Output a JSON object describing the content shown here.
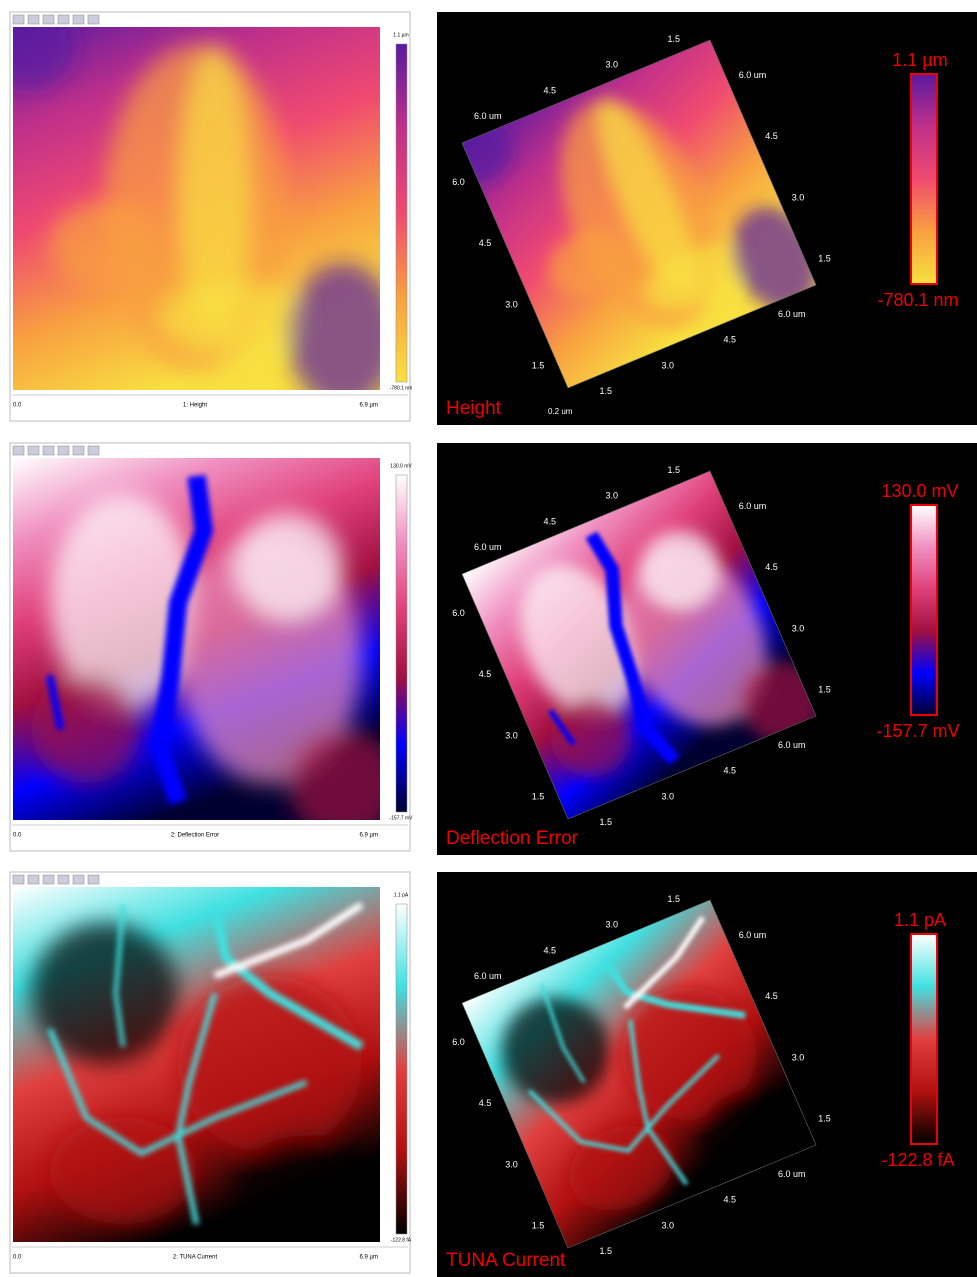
{
  "panels": [
    {
      "caption": "1: Height",
      "axis_start": "0.0",
      "axis_end": "6.9 µm",
      "scale_max": "1.1 µm",
      "scale_min": "-780.1 nm",
      "title_3d": "Height",
      "scale_note": "0.2 um",
      "colors": [
        "#5a1aa0",
        "#c0308a",
        "#f04a70",
        "#f8a040",
        "#f8e040"
      ]
    },
    {
      "caption": "2: Deflection Error",
      "axis_start": "0.0",
      "axis_end": "6.9 µm",
      "scale_max": "130.0 mV",
      "scale_min": "-157.7 mV",
      "title_3d": "Deflection Error",
      "colors": [
        "#ffffff",
        "#f090c0",
        "#e0407a",
        "#a01040",
        "#0000ff",
        "#000030"
      ]
    },
    {
      "caption": "2: TUNA Current",
      "axis_start": "0.0",
      "axis_end": "6.9 µm",
      "scale_max": "1.1 pA",
      "scale_min": "-122.8 fA",
      "title_3d": "TUNA Current",
      "colors": [
        "#ffffff",
        "#40e0e0",
        "#e04040",
        "#b01010",
        "#000000"
      ]
    }
  ],
  "axis_3d": {
    "top": [
      "6.0 um",
      "4.5",
      "3.0",
      "1.5"
    ],
    "right": [
      "6.0 um",
      "4.5",
      "3.0",
      "1.5"
    ],
    "left": [
      "6.0",
      "4.5",
      "3.0",
      "1.5"
    ],
    "bottom": [
      "1.5",
      "3.0",
      "4.5",
      "6.0 um"
    ]
  }
}
